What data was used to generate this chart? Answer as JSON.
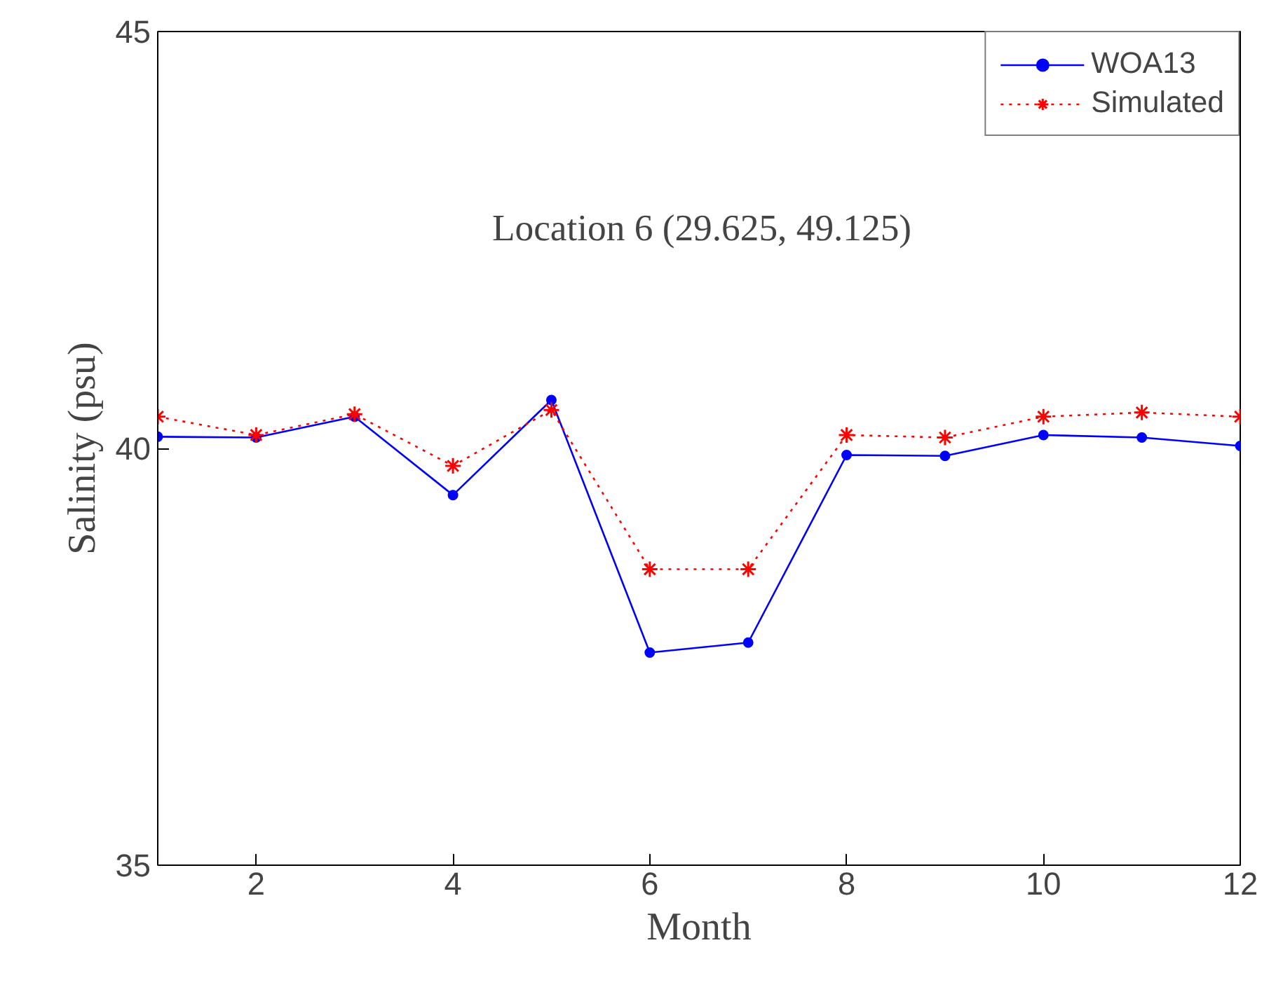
{
  "chart_data": {
    "type": "line",
    "xlabel": "Month",
    "ylabel": "Salinity (psu)",
    "x": [
      1,
      2,
      3,
      4,
      5,
      6,
      7,
      8,
      9,
      10,
      11,
      12
    ],
    "series": [
      {
        "name": "WOA13",
        "color": "#0000ff",
        "marker": "circle",
        "line_style": "solid",
        "values": [
          40.14,
          40.13,
          40.38,
          39.44,
          40.58,
          37.55,
          37.67,
          39.92,
          39.91,
          40.16,
          40.13,
          40.03
        ]
      },
      {
        "name": "Simulated",
        "color": "#ff0000",
        "marker": "cross",
        "line_style": "dotted",
        "values": [
          40.38,
          40.16,
          40.41,
          39.79,
          40.46,
          38.55,
          38.55,
          40.16,
          40.13,
          40.38,
          40.43,
          40.38
        ]
      }
    ],
    "annotations": [
      "Location 6 (29.625, 49.125)"
    ],
    "xlim": [
      1,
      12
    ],
    "xticks": [
      2,
      4,
      6,
      8,
      10,
      12
    ],
    "ylim": [
      35,
      45
    ],
    "yticks": [
      35,
      40,
      45
    ],
    "grid": false,
    "legend": "top right"
  }
}
